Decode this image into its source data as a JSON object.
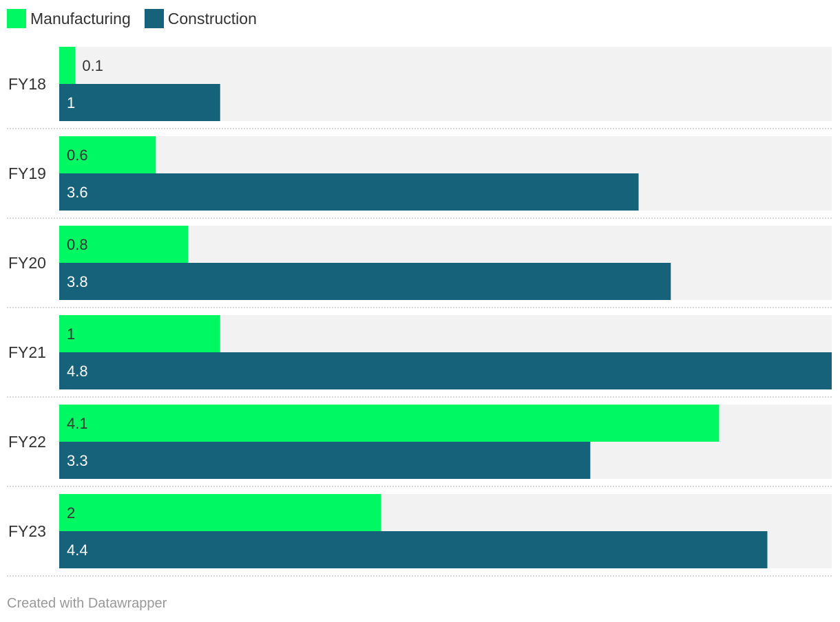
{
  "colors": {
    "manufacturing": "#00f963",
    "construction": "#17627b",
    "track": "#f2f2f2",
    "label_dark": "#333333",
    "label_light": "#ffffff",
    "divider": "#cccccc"
  },
  "footer": "Created with Datawrapper",
  "chart_data": {
    "type": "bar",
    "orientation": "horizontal",
    "categories": [
      "FY18",
      "FY19",
      "FY20",
      "FY21",
      "FY22",
      "FY23"
    ],
    "series": [
      {
        "name": "Manufacturing",
        "values": [
          0.1,
          0.6,
          0.8,
          1,
          4.1,
          2
        ]
      },
      {
        "name": "Construction",
        "values": [
          1,
          3.6,
          3.8,
          4.8,
          3.3,
          4.4
        ]
      }
    ],
    "xlim": [
      0,
      4.8
    ],
    "legend": "top-left",
    "data_labels": true,
    "grid": false
  }
}
